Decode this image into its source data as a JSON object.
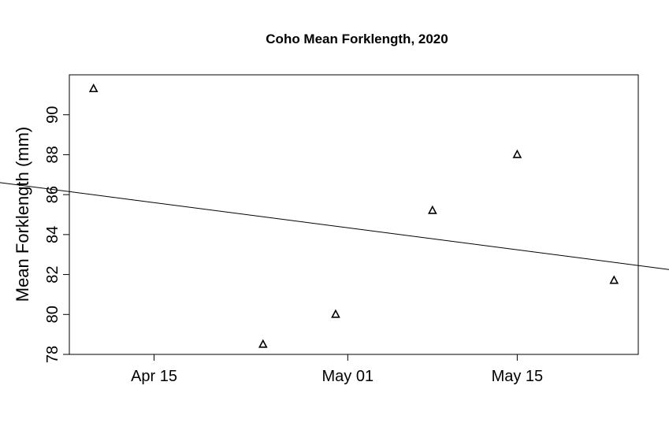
{
  "chart_data": {
    "type": "scatter",
    "title": "Coho Mean Forklength, 2020",
    "xlabel": "",
    "ylabel": "Mean Forklength (mm)",
    "x_axis_type": "date",
    "xlim": [
      "2020-04-08",
      "2020-05-25"
    ],
    "ylim": [
      78,
      92
    ],
    "x_ticks": [
      {
        "value": "2020-04-15",
        "label": "Apr 15"
      },
      {
        "value": "2020-05-01",
        "label": "May 01"
      },
      {
        "value": "2020-05-15",
        "label": "May 15"
      }
    ],
    "y_ticks": [
      78,
      80,
      82,
      84,
      86,
      88,
      90
    ],
    "points": [
      {
        "x": "2020-04-10",
        "y": 91.3
      },
      {
        "x": "2020-04-24",
        "y": 78.5
      },
      {
        "x": "2020-04-30",
        "y": 80.0
      },
      {
        "x": "2020-05-08",
        "y": 85.2
      },
      {
        "x": "2020-05-15",
        "y": 88.0
      },
      {
        "x": "2020-05-23",
        "y": 81.7
      }
    ],
    "trend_line": {
      "type": "linear-fit",
      "points": [
        {
          "x": "2020-04-08",
          "y": 86.15
        },
        {
          "x": "2020-05-25",
          "y": 82.45
        }
      ]
    },
    "marker": "open-triangle",
    "grid": false,
    "legend": "none"
  }
}
